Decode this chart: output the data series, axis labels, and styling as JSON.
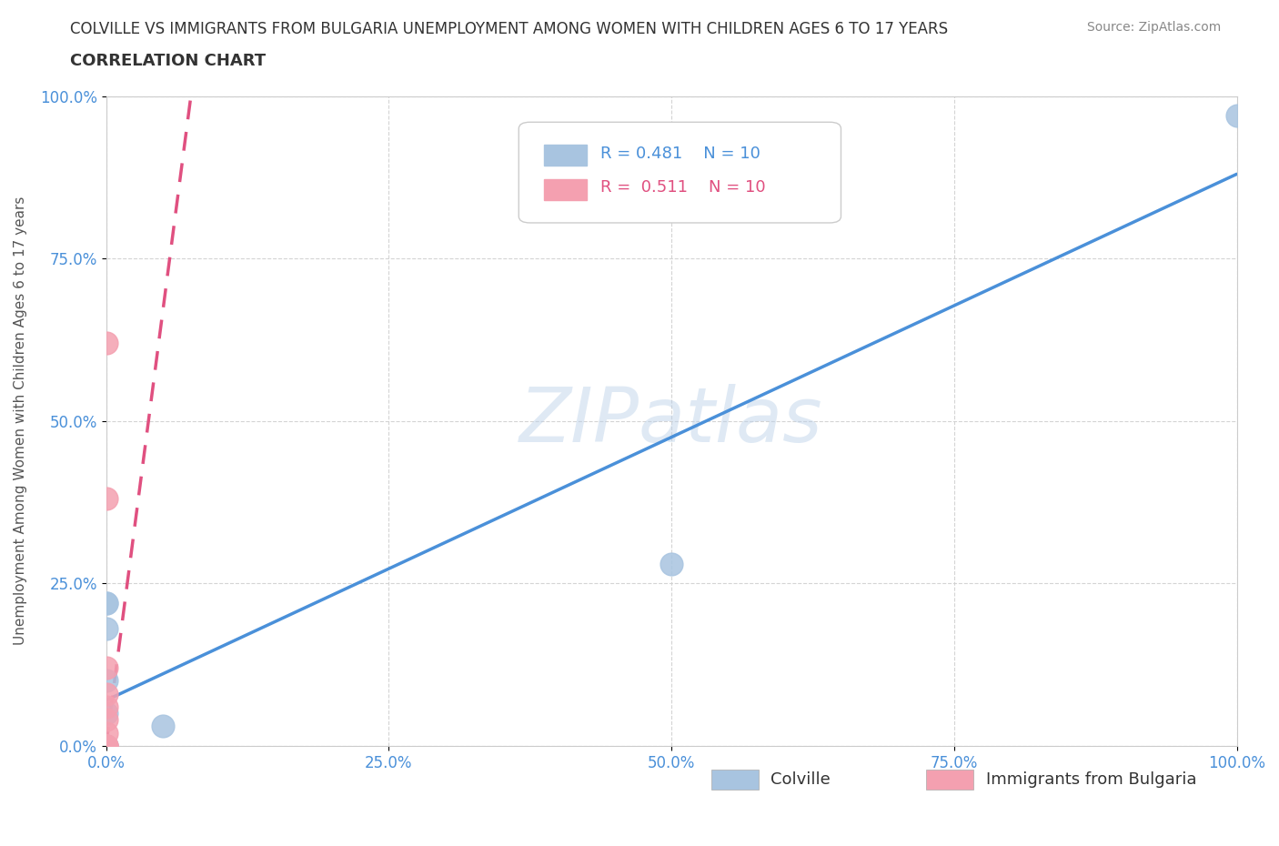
{
  "title_line1": "COLVILLE VS IMMIGRANTS FROM BULGARIA UNEMPLOYMENT AMONG WOMEN WITH CHILDREN AGES 6 TO 17 YEARS",
  "title_line2": "CORRELATION CHART",
  "source_text": "Source: ZipAtlas.com",
  "ylabel": "Unemployment Among Women with Children Ages 6 to 17 years",
  "xmin": 0.0,
  "xmax": 1.0,
  "ymin": 0.0,
  "ymax": 1.0,
  "xtick_labels": [
    "0.0%",
    "25.0%",
    "50.0%",
    "75.0%",
    "100.0%"
  ],
  "xtick_positions": [
    0.0,
    0.25,
    0.5,
    0.75,
    1.0
  ],
  "ytick_labels": [
    "0.0%",
    "25.0%",
    "50.0%",
    "75.0%",
    "100.0%"
  ],
  "ytick_positions": [
    0.0,
    0.25,
    0.5,
    0.75,
    1.0
  ],
  "colville_x": [
    0.0,
    0.0,
    0.0,
    0.0,
    0.0,
    0.0,
    0.0,
    0.05,
    0.5,
    1.0
  ],
  "colville_y": [
    0.0,
    0.0,
    0.05,
    0.1,
    0.18,
    0.22,
    0.22,
    0.03,
    0.28,
    0.97
  ],
  "bulgaria_x": [
    0.0,
    0.0,
    0.0,
    0.0,
    0.0,
    0.0,
    0.0,
    0.0,
    0.0,
    0.0
  ],
  "bulgaria_y": [
    0.0,
    0.0,
    0.0,
    0.02,
    0.04,
    0.06,
    0.08,
    0.12,
    0.38,
    0.62
  ],
  "colville_color": "#a8c4e0",
  "bulgaria_color": "#f4a0b0",
  "colville_line_color": "#4a90d9",
  "bulgaria_line_color": "#e05080",
  "colville_R": 0.481,
  "colville_N": 10,
  "bulgaria_R": 0.511,
  "bulgaria_N": 10,
  "colville_line_x": [
    0.0,
    1.0
  ],
  "colville_line_y": [
    0.07,
    0.88
  ],
  "bulgaria_line_x": [
    0.0,
    0.075
  ],
  "bulgaria_line_y": [
    0.0,
    1.0
  ],
  "watermark": "ZIPatlas",
  "background_color": "#ffffff",
  "grid_color": "#d0d0d0"
}
